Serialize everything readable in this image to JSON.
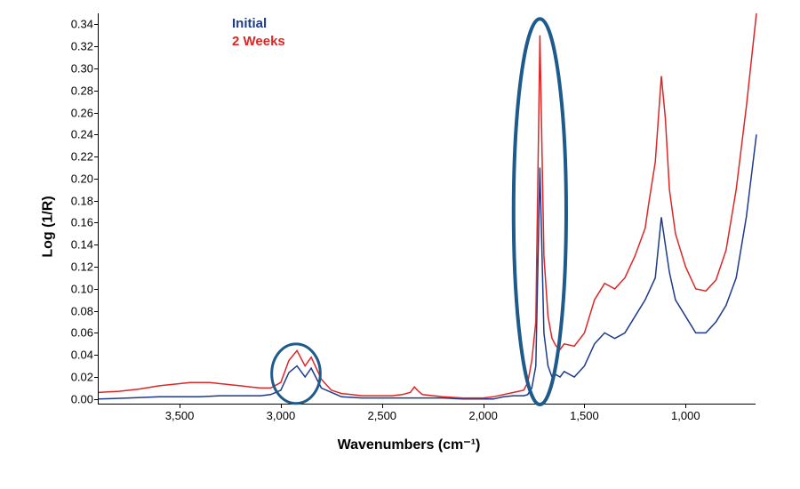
{
  "chart": {
    "type": "line",
    "title": "",
    "xlabel": "Wavenumbers (cm⁻¹)",
    "ylabel": "Log (1/R)",
    "xlim": [
      3900,
      650
    ],
    "ylim": [
      -0.005,
      0.35
    ],
    "x_reversed": true,
    "yticks": [
      0.0,
      0.02,
      0.04,
      0.06,
      0.08,
      0.1,
      0.12,
      0.14,
      0.16,
      0.18,
      0.2,
      0.22,
      0.24,
      0.26,
      0.28,
      0.3,
      0.32,
      0.34
    ],
    "xticks": [
      3500,
      3000,
      2500,
      2000,
      1500,
      1000
    ],
    "xtick_labels": [
      "3,500",
      "3,000",
      "2,500",
      "2,000",
      "1,500",
      "1,000"
    ],
    "label_fontsize": 16,
    "tick_fontsize": 13,
    "background_color": "#ffffff",
    "axis_color": "#000000",
    "line_width": 1.5,
    "legend": {
      "position": "top-left",
      "items": [
        {
          "label": "Initial",
          "color": "#1e3a8a"
        },
        {
          "label": "2 Weeks",
          "color": "#dc2626"
        }
      ]
    },
    "series": [
      {
        "name": "Initial",
        "color": "#1e3a8a",
        "x": [
          3900,
          3750,
          3600,
          3500,
          3400,
          3300,
          3200,
          3100,
          3050,
          3000,
          2960,
          2920,
          2880,
          2850,
          2800,
          2700,
          2600,
          2500,
          2400,
          2300,
          2200,
          2100,
          2000,
          1950,
          1900,
          1850,
          1800,
          1780,
          1760,
          1740,
          1720,
          1700,
          1680,
          1660,
          1640,
          1620,
          1600,
          1550,
          1500,
          1450,
          1400,
          1350,
          1300,
          1250,
          1200,
          1150,
          1120,
          1100,
          1080,
          1050,
          1000,
          950,
          900,
          850,
          800,
          750,
          700,
          650
        ],
        "y": [
          0.0,
          0.001,
          0.002,
          0.002,
          0.002,
          0.003,
          0.003,
          0.003,
          0.004,
          0.008,
          0.024,
          0.03,
          0.02,
          0.028,
          0.01,
          0.002,
          0.001,
          0.001,
          0.001,
          0.001,
          0.001,
          0.0,
          0.0,
          0.0,
          0.002,
          0.003,
          0.003,
          0.004,
          0.01,
          0.03,
          0.21,
          0.06,
          0.03,
          0.02,
          0.022,
          0.02,
          0.025,
          0.02,
          0.03,
          0.05,
          0.06,
          0.055,
          0.06,
          0.075,
          0.09,
          0.11,
          0.165,
          0.14,
          0.115,
          0.09,
          0.075,
          0.06,
          0.06,
          0.07,
          0.085,
          0.11,
          0.165,
          0.24
        ]
      },
      {
        "name": "2 Weeks",
        "color": "#dc2626",
        "x": [
          3900,
          3800,
          3700,
          3600,
          3500,
          3450,
          3400,
          3350,
          3300,
          3250,
          3200,
          3150,
          3100,
          3050,
          3000,
          2960,
          2920,
          2880,
          2850,
          2800,
          2750,
          2700,
          2650,
          2600,
          2550,
          2500,
          2450,
          2400,
          2360,
          2340,
          2320,
          2300,
          2200,
          2100,
          2000,
          1950,
          1900,
          1850,
          1800,
          1780,
          1760,
          1740,
          1720,
          1700,
          1680,
          1660,
          1640,
          1620,
          1600,
          1550,
          1500,
          1450,
          1400,
          1350,
          1300,
          1250,
          1200,
          1180,
          1150,
          1120,
          1100,
          1080,
          1050,
          1000,
          950,
          900,
          850,
          800,
          750,
          700,
          650
        ],
        "y": [
          0.006,
          0.007,
          0.009,
          0.012,
          0.014,
          0.015,
          0.015,
          0.015,
          0.014,
          0.013,
          0.012,
          0.011,
          0.01,
          0.01,
          0.015,
          0.035,
          0.044,
          0.03,
          0.038,
          0.018,
          0.008,
          0.005,
          0.004,
          0.003,
          0.003,
          0.003,
          0.003,
          0.004,
          0.006,
          0.011,
          0.007,
          0.004,
          0.002,
          0.001,
          0.001,
          0.002,
          0.004,
          0.006,
          0.008,
          0.015,
          0.035,
          0.07,
          0.33,
          0.13,
          0.075,
          0.055,
          0.048,
          0.045,
          0.05,
          0.048,
          0.06,
          0.09,
          0.105,
          0.1,
          0.11,
          0.13,
          0.155,
          0.18,
          0.215,
          0.293,
          0.255,
          0.19,
          0.15,
          0.12,
          0.1,
          0.098,
          0.108,
          0.135,
          0.19,
          0.265,
          0.35
        ]
      }
    ],
    "annotations": [
      {
        "type": "ellipse",
        "cx_wavenumber": 2925,
        "cy_log": 0.023,
        "rx_wavenumber": 120,
        "ry_log": 0.027,
        "stroke": "#1e5a8a",
        "stroke_width": 3
      },
      {
        "type": "ellipse",
        "cx_wavenumber": 1720,
        "cy_log": 0.17,
        "rx_wavenumber": 130,
        "ry_log": 0.175,
        "stroke": "#1e5a8a",
        "stroke_width": 4
      }
    ]
  }
}
